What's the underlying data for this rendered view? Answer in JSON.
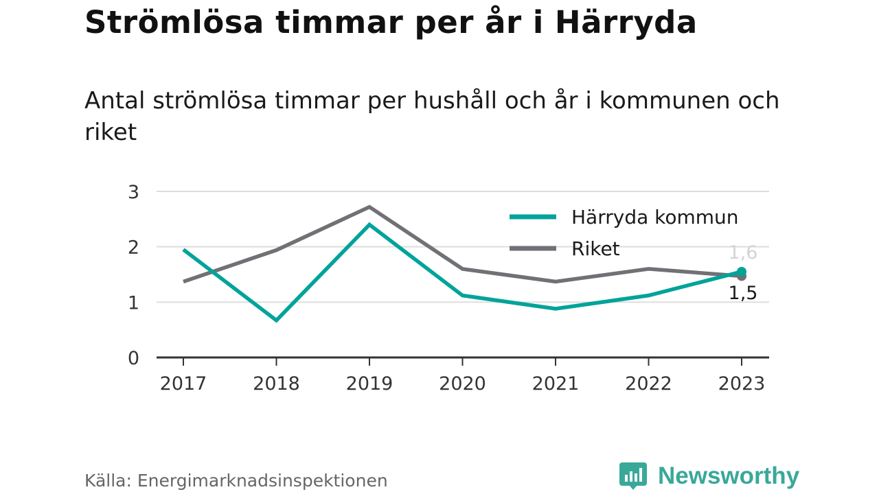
{
  "header": {
    "title": "Strömlösa timmar per år i Härryda",
    "subtitle": "Antal strömlösa timmar per hushåll och år i kommunen och riket"
  },
  "footer": {
    "source": "Källa: Energimarknadsinspektionen",
    "logo_text": "Newsworthy",
    "logo_icon": "bar-chart-speech-bubble-icon"
  },
  "colors": {
    "harryda": "#00a39a",
    "riket": "#717075",
    "grid": "#dddddd",
    "axis": "#333333",
    "brand": "#3aa899"
  },
  "chart_data": {
    "type": "line",
    "title": "Strömlösa timmar per år i Härryda",
    "subtitle": "Antal strömlösa timmar per hushåll och år i kommunen och riket",
    "x": [
      "2017",
      "2018",
      "2019",
      "2020",
      "2021",
      "2022",
      "2023"
    ],
    "ylim": [
      0,
      3
    ],
    "yticks": [
      "0",
      "1",
      "2",
      "3"
    ],
    "grid": true,
    "legend": "top-right",
    "series": [
      {
        "name": "Härryda kommun",
        "color": "#00a39a",
        "values": [
          1.95,
          0.67,
          2.4,
          1.12,
          0.88,
          1.12,
          1.55
        ],
        "end_label": "1,6"
      },
      {
        "name": "Riket",
        "color": "#717075",
        "values": [
          1.37,
          1.94,
          2.72,
          1.6,
          1.37,
          1.6,
          1.47
        ],
        "end_label": "1,5"
      }
    ]
  }
}
